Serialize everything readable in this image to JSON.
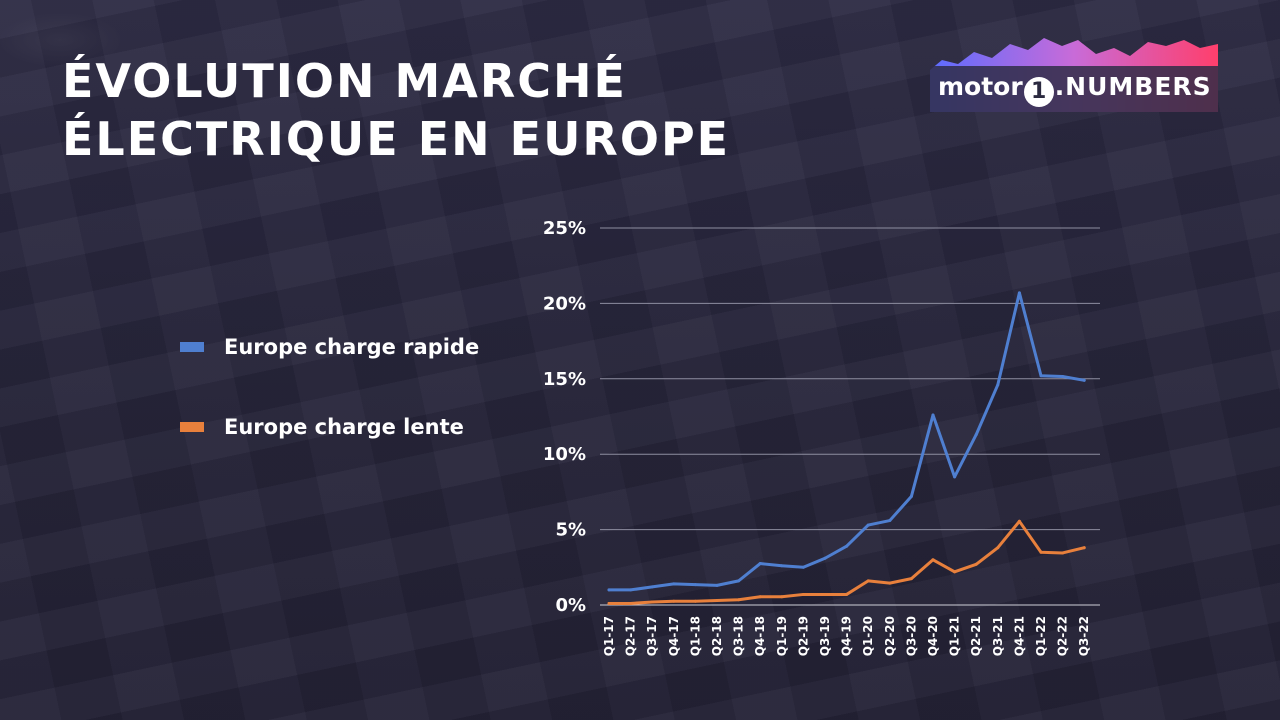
{
  "title": {
    "line1": "ÉVOLUTION MARCHÉ",
    "line2": "ÉLECTRIQUE EN EUROPE"
  },
  "logo": {
    "brand": "motor",
    "mark": "1",
    "suffix": ".NUMBERS",
    "gradient_colors": [
      "#5b6cff",
      "#c86bd8",
      "#ff3f6c"
    ]
  },
  "chart_data": {
    "type": "line",
    "title": "ÉVOLUTION MARCHÉ ÉLECTRIQUE EN EUROPE",
    "xlabel": "",
    "ylabel": "",
    "ylim": [
      0,
      25
    ],
    "y_ticks": [
      0,
      5,
      10,
      15,
      20,
      25
    ],
    "y_tick_labels": [
      "0%",
      "5%",
      "10%",
      "15%",
      "20%",
      "25%"
    ],
    "grid": true,
    "legend_position": "left",
    "categories": [
      "Q1-17",
      "Q2-17",
      "Q3-17",
      "Q4-17",
      "Q1-18",
      "Q2-18",
      "Q3-18",
      "Q4-18",
      "Q1-19",
      "Q2-19",
      "Q3-19",
      "Q4-19",
      "Q1-20",
      "Q2-20",
      "Q3-20",
      "Q4-20",
      "Q1-21",
      "Q2-21",
      "Q3-21",
      "Q4-21",
      "Q1-22",
      "Q2-22",
      "Q3-22"
    ],
    "series": [
      {
        "name": "Europe charge rapide",
        "color": "#4f7fd0",
        "values": [
          1.0,
          1.0,
          1.2,
          1.4,
          1.35,
          1.3,
          1.6,
          2.75,
          2.6,
          2.5,
          3.1,
          3.9,
          5.3,
          5.6,
          7.2,
          12.6,
          8.5,
          11.3,
          14.6,
          20.7,
          15.2,
          15.15,
          14.9
        ]
      },
      {
        "name": "Europe charge lente",
        "color": "#e8803c",
        "values": [
          0.1,
          0.1,
          0.2,
          0.25,
          0.25,
          0.3,
          0.35,
          0.55,
          0.55,
          0.7,
          0.7,
          0.7,
          1.6,
          1.45,
          1.75,
          3.0,
          2.2,
          2.7,
          3.8,
          5.55,
          3.5,
          3.45,
          3.8
        ]
      }
    ]
  }
}
